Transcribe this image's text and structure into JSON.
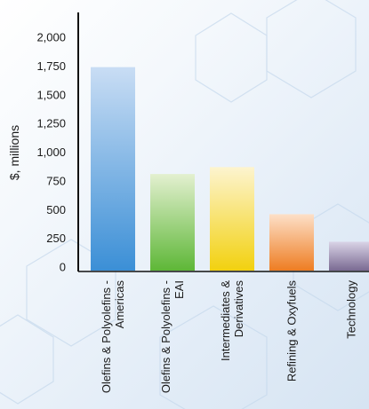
{
  "chart_data": {
    "type": "bar",
    "title": "",
    "xlabel": "",
    "ylabel": "$, millions",
    "ylim": [
      0,
      2000
    ],
    "yticks": [
      0,
      250,
      500,
      750,
      1000,
      1250,
      1500,
      1750,
      2000
    ],
    "ytick_labels": [
      "0",
      "250",
      "500",
      "750",
      "1,000",
      "1,250",
      "1,500",
      "1,750",
      "2,000"
    ],
    "grid": false,
    "categories": [
      [
        "Olefins & Polyolefins -",
        "Americas"
      ],
      [
        "Olefins & Polyolefins -",
        "EAI"
      ],
      [
        "Intermediates &",
        "Derivatives"
      ],
      [
        "Refining & Oxyfuels"
      ],
      [
        "Technology"
      ]
    ],
    "values": [
      1740,
      810,
      870,
      460,
      220
    ],
    "bar_colors": [
      [
        "#c9ddf4",
        "#3b8fd6"
      ],
      [
        "#e3f0d0",
        "#5eb737"
      ],
      [
        "#fdf4cf",
        "#f2d10f"
      ],
      [
        "#fde0c8",
        "#ee7d22"
      ],
      [
        "#d9d3e6",
        "#7a6a92"
      ]
    ]
  }
}
